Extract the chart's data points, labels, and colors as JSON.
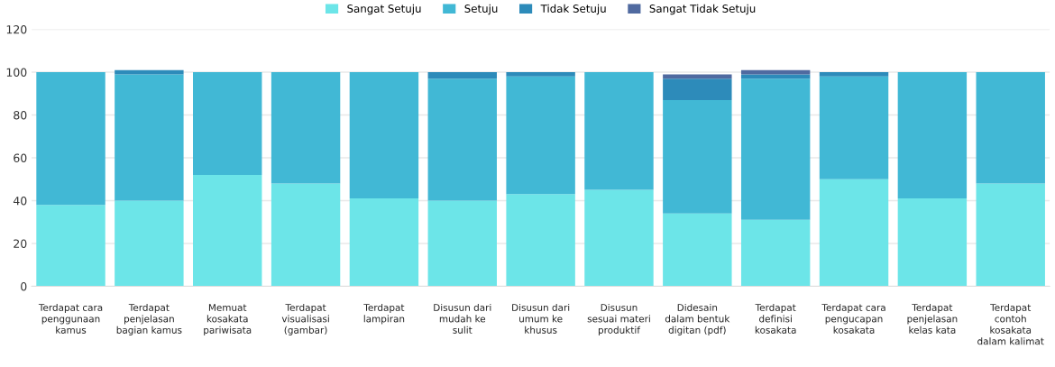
{
  "chart_data": {
    "type": "bar",
    "stacked": true,
    "categories": [
      "Terdapat cara penggunaan kamus",
      "Terdapat penjelasan bagian kamus",
      "Memuat kosakata pariwisata",
      "Terdapat visualisasi (gambar)",
      "Terdapat lampiran",
      "Disusun dari mudah ke sulit",
      "Disusun dari umum ke khusus",
      "Disusun sesuai materi produktif",
      "Didesain dalam bentuk digitan (pdf)",
      "Terdapat definisi kosakata",
      "Terdapat cara pengucapan kosakata",
      "Terdapat penjelasan kelas kata",
      "Terdapat contoh kosakata dalam kalimat"
    ],
    "series": [
      {
        "name": "Sangat Setuju",
        "color": "#6ce5e8",
        "values": [
          38,
          40,
          52,
          48,
          41,
          40,
          43,
          45,
          34,
          31,
          50,
          41,
          48
        ]
      },
      {
        "name": "Setuju",
        "color": "#41b8d5",
        "values": [
          62,
          59,
          48,
          52,
          59,
          57,
          55,
          55,
          53,
          66,
          48,
          59,
          52
        ]
      },
      {
        "name": "Tidak Setuju",
        "color": "#2d8bba",
        "values": [
          0,
          2,
          0,
          0,
          0,
          3,
          2,
          0,
          10,
          2,
          2,
          0,
          0
        ]
      },
      {
        "name": "Sangat Tidak Setuju",
        "color": "#506aa0",
        "values": [
          0,
          0,
          0,
          0,
          0,
          0,
          0,
          0,
          2,
          2,
          0,
          0,
          0
        ]
      }
    ],
    "ylim": [
      0,
      120
    ],
    "yticks": [
      0,
      20,
      40,
      60,
      80,
      100,
      120
    ],
    "grid": "y",
    "legend": "top"
  }
}
